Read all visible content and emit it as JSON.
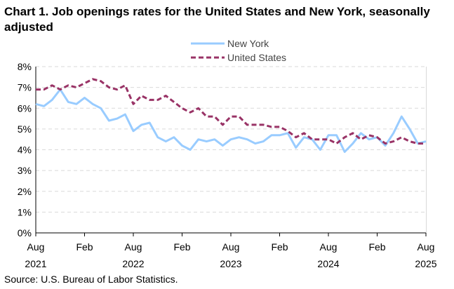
{
  "chart_data": {
    "type": "line",
    "title": "Chart 1. Job openings rates for the United States and New York, seasonally adjusted",
    "source": "Source: U.S. Bureau of Labor Statistics.",
    "xlabel": "",
    "ylabel": "",
    "ylim": [
      0,
      8
    ],
    "y_ticks": [
      "0%",
      "1%",
      "2%",
      "3%",
      "4%",
      "5%",
      "6%",
      "7%",
      "8%"
    ],
    "x_range": [
      "Aug 2021",
      "Aug 2025"
    ],
    "x_ticks": [
      {
        "month": "Aug",
        "year": "2021"
      },
      {
        "month": "Feb",
        "year": ""
      },
      {
        "month": "Aug",
        "year": "2022"
      },
      {
        "month": "Feb",
        "year": ""
      },
      {
        "month": "Aug",
        "year": "2023"
      },
      {
        "month": "Feb",
        "year": ""
      },
      {
        "month": "Aug",
        "year": "2024"
      },
      {
        "month": "Feb",
        "year": ""
      },
      {
        "month": "Aug",
        "year": "2025"
      }
    ],
    "grid": "horizontal dashed",
    "legend": "top-center",
    "series": [
      {
        "name": "New York",
        "color": "#99ccff",
        "style": "solid",
        "values": [
          6.2,
          6.1,
          6.4,
          6.9,
          6.3,
          6.2,
          6.5,
          6.2,
          6.0,
          5.4,
          5.5,
          5.7,
          4.9,
          5.2,
          5.3,
          4.6,
          4.4,
          4.6,
          4.2,
          4.0,
          4.5,
          4.4,
          4.5,
          4.2,
          4.5,
          4.6,
          4.5,
          4.3,
          4.4,
          4.7,
          4.7,
          4.8,
          4.1,
          4.6,
          4.5,
          4.0,
          4.7,
          4.7,
          3.9,
          4.3,
          4.8,
          4.5,
          4.6,
          4.2,
          4.8,
          5.6,
          5.0,
          4.3,
          4.4
        ]
      },
      {
        "name": "United States",
        "color": "#993366",
        "style": "dashed",
        "values": [
          6.9,
          6.9,
          7.1,
          6.9,
          7.1,
          7.0,
          7.2,
          7.4,
          7.3,
          7.0,
          6.9,
          7.1,
          6.2,
          6.6,
          6.4,
          6.4,
          6.6,
          6.3,
          6.0,
          5.8,
          6.0,
          5.6,
          5.6,
          5.2,
          5.6,
          5.6,
          5.2,
          5.2,
          5.2,
          5.1,
          5.1,
          4.9,
          4.6,
          4.8,
          4.5,
          4.5,
          4.5,
          4.3,
          4.6,
          4.8,
          4.5,
          4.7,
          4.6,
          4.3,
          4.4,
          4.6,
          4.4,
          4.3,
          4.3
        ]
      }
    ]
  }
}
